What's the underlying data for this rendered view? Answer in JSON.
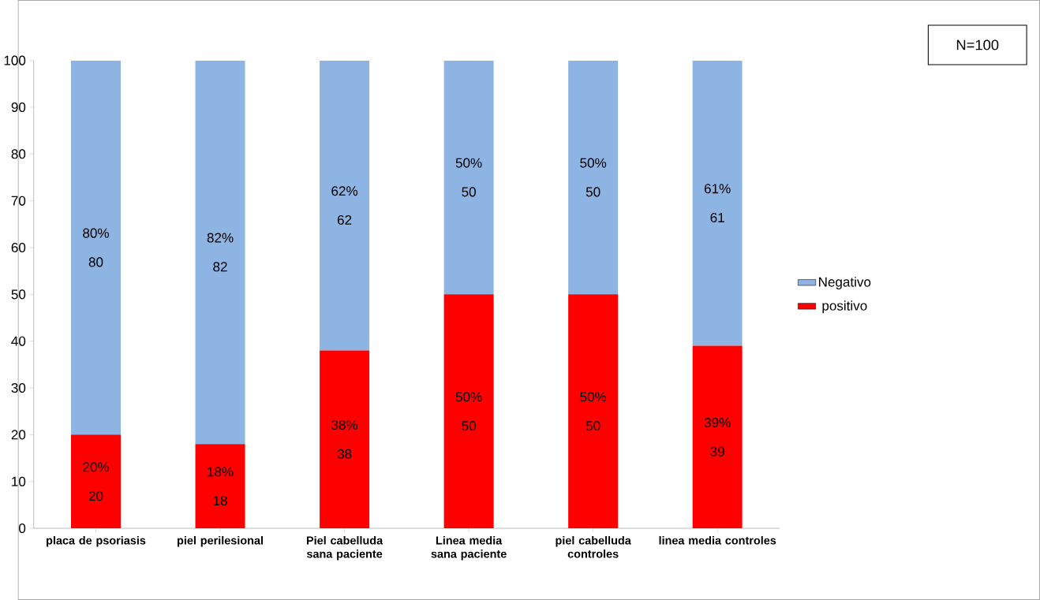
{
  "chart_data": {
    "type": "bar",
    "stacked": true,
    "categories": [
      "placa de psoriasis",
      "piel perilesional",
      "Piel cabelluda sana paciente",
      "Linea media sana paciente",
      "piel  cabelluda controles",
      "linea media controles"
    ],
    "series": [
      {
        "name": "positivo",
        "color": "#ff0000",
        "values": [
          20,
          18,
          38,
          50,
          50,
          39
        ],
        "value_labels": [
          "20% 20",
          "18% 18",
          "38% 38",
          "50% 50",
          "50% 50",
          "39% 39"
        ]
      },
      {
        "name": "Negativo",
        "color": "#8eb4e3",
        "values": [
          80,
          82,
          62,
          50,
          50,
          61
        ],
        "value_labels": [
          "80% 80",
          "82% 82",
          "62% 62",
          "50% 50",
          "50% 50",
          "61% 61"
        ]
      }
    ],
    "ylim": [
      0,
      100
    ],
    "yticks": [
      0,
      10,
      20,
      30,
      40,
      50,
      60,
      70,
      80,
      90,
      100
    ],
    "grid": false,
    "legend": "right",
    "annotations": [
      "N=100"
    ]
  }
}
